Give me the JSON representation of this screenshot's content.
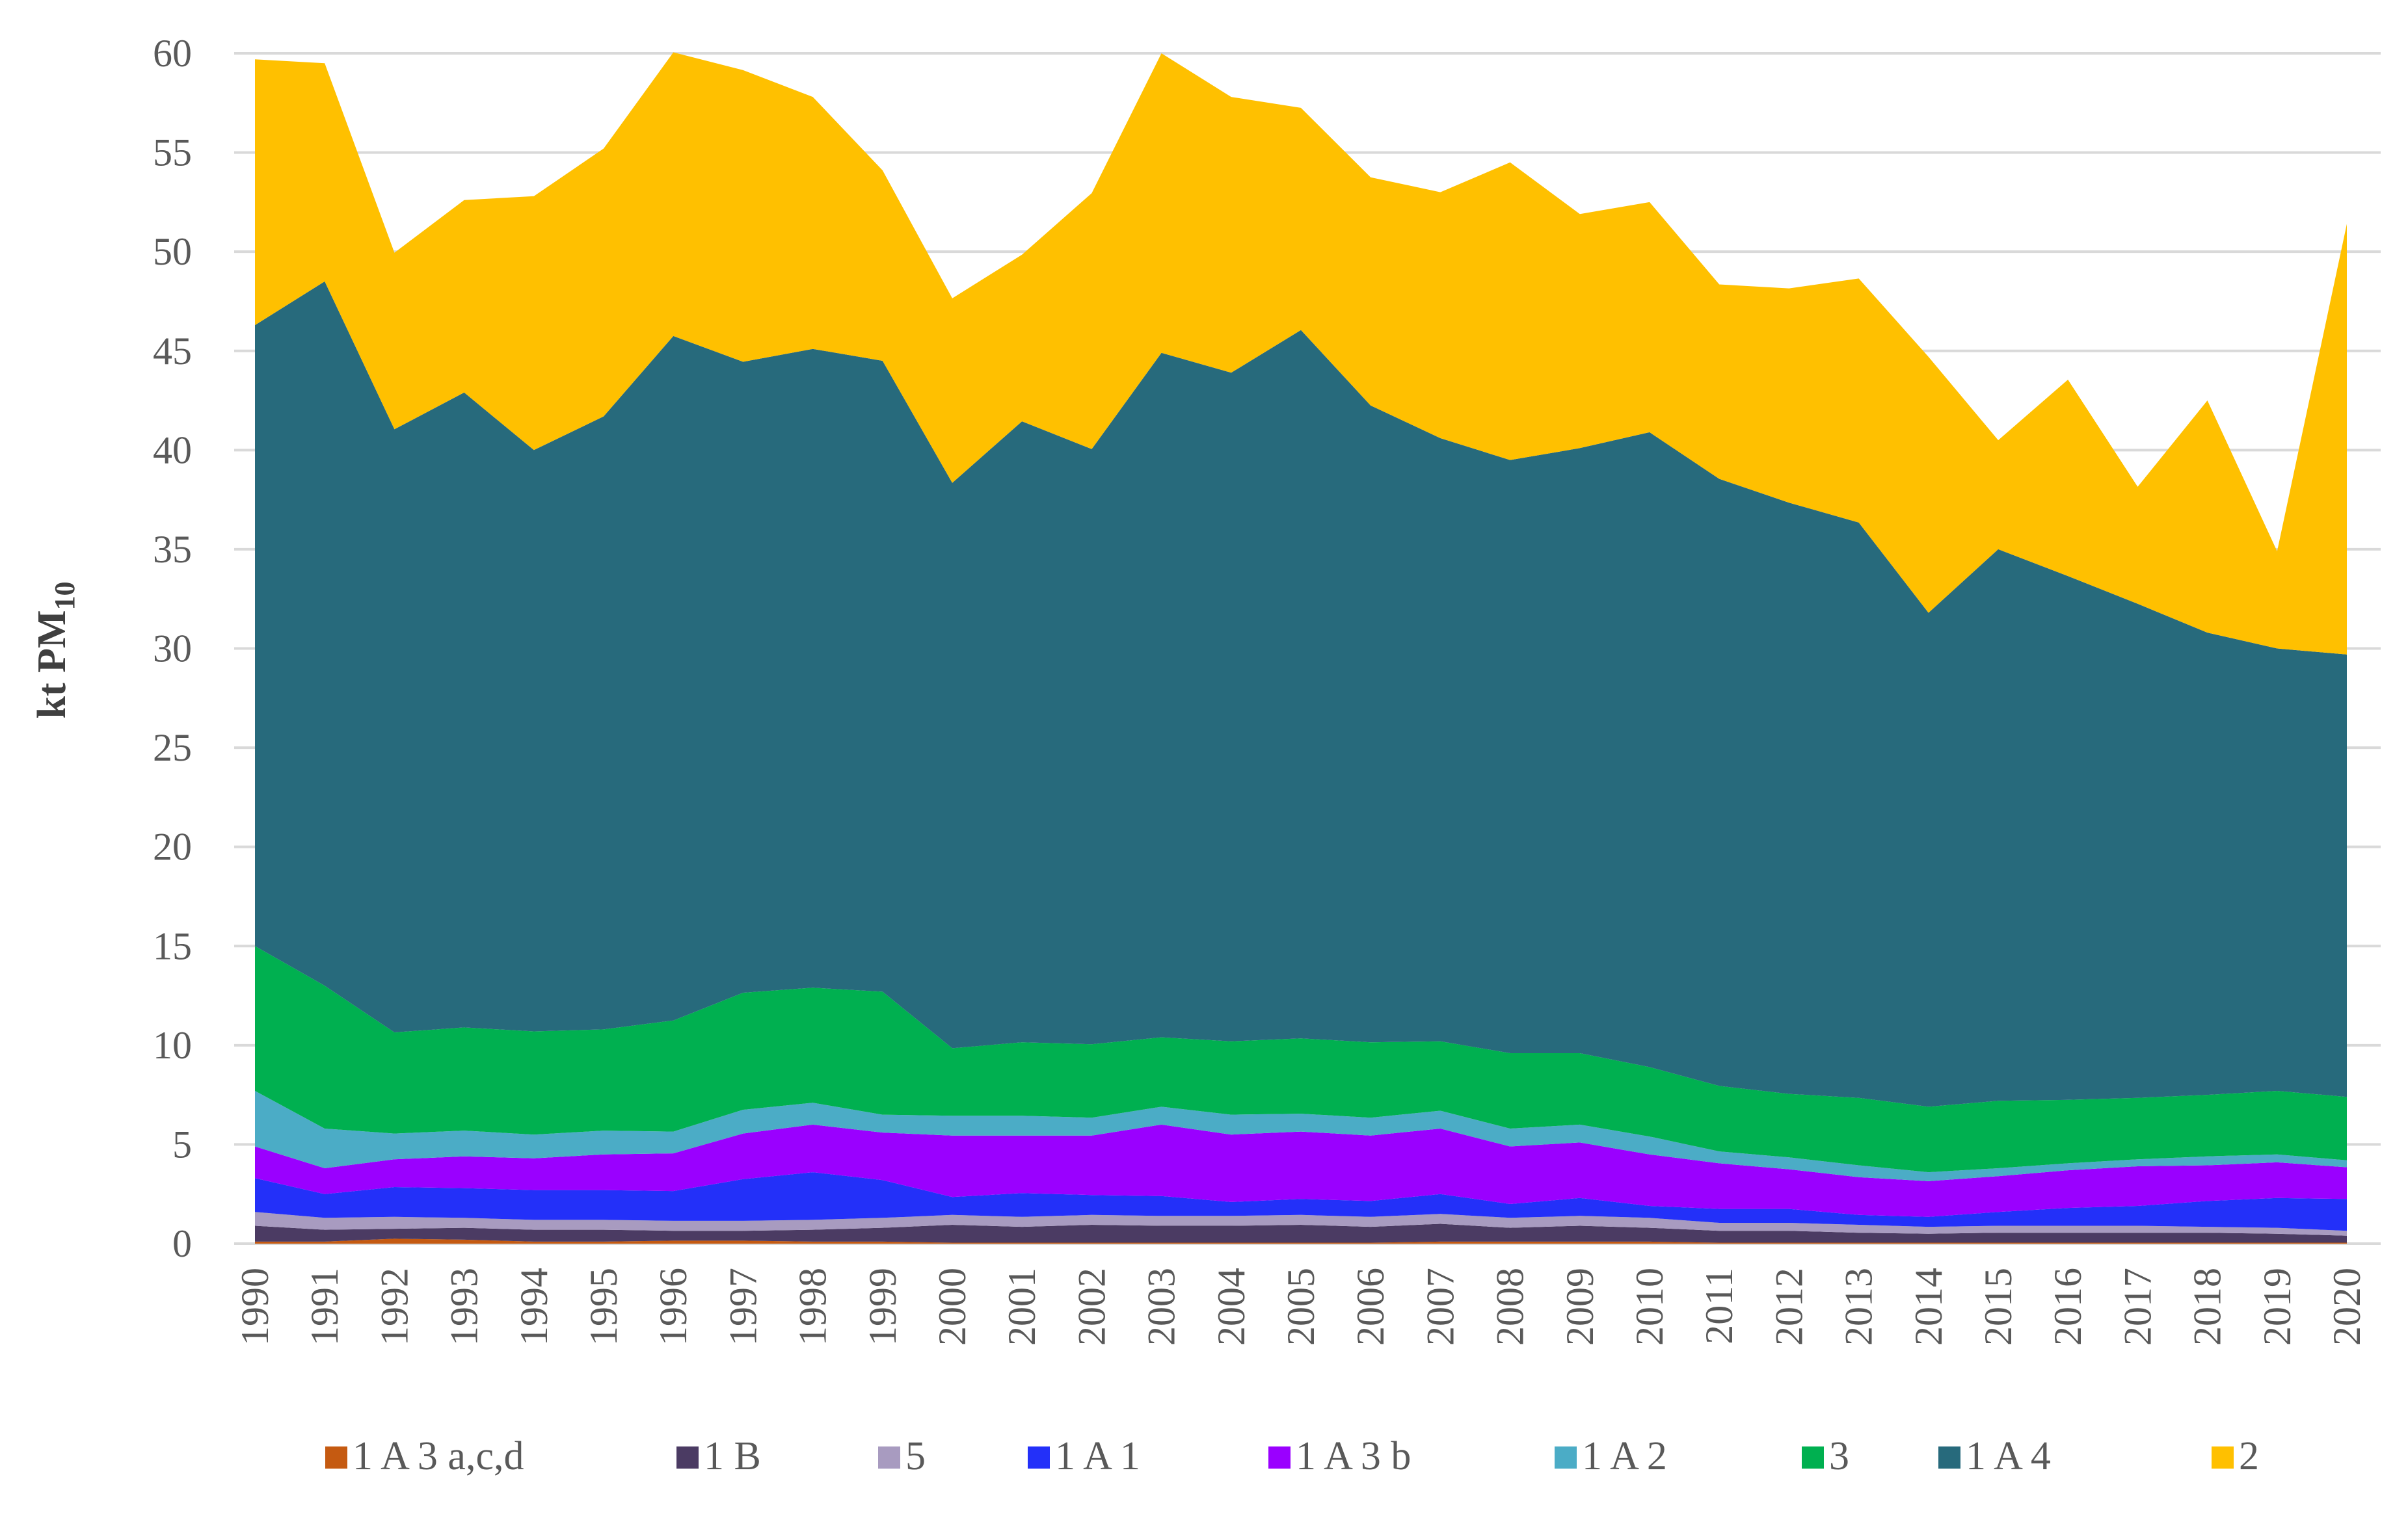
{
  "chart_data": {
    "type": "area",
    "stacked": true,
    "title": "",
    "xlabel": "",
    "ylabel": "kt PM",
    "ylabel_subscript": "10",
    "ylim": [
      0,
      60
    ],
    "yticks": [
      0,
      5,
      10,
      15,
      20,
      25,
      30,
      35,
      40,
      45,
      50,
      55,
      60
    ],
    "grid": true,
    "legend_position": "bottom",
    "x": [
      "1990",
      "1991",
      "1992",
      "1993",
      "1994",
      "1995",
      "1996",
      "1997",
      "1998",
      "1999",
      "2000",
      "2001",
      "2002",
      "2003",
      "2004",
      "2005",
      "2006",
      "2007",
      "2008",
      "2009",
      "2010",
      "2011",
      "2012",
      "2013",
      "2014",
      "2015",
      "2016",
      "2017",
      "2018",
      "2019",
      "2020"
    ],
    "series": [
      {
        "name": "1 A 3 a,c,d",
        "color": "#C55A11",
        "values": [
          0.1,
          0.1,
          0.25,
          0.2,
          0.1,
          0.1,
          0.15,
          0.15,
          0.1,
          0.1,
          0.05,
          0.05,
          0.05,
          0.05,
          0.05,
          0.05,
          0.05,
          0.1,
          0.1,
          0.1,
          0.1,
          0.05,
          0.05,
          0.05,
          0.05,
          0.05,
          0.05,
          0.05,
          0.05,
          0.05,
          0.05
        ]
      },
      {
        "name": "1 B",
        "color": "#4B3B63",
        "values": [
          0.8,
          0.6,
          0.5,
          0.6,
          0.6,
          0.6,
          0.5,
          0.5,
          0.6,
          0.7,
          0.9,
          0.8,
          0.9,
          0.85,
          0.85,
          0.9,
          0.8,
          0.9,
          0.7,
          0.8,
          0.7,
          0.6,
          0.6,
          0.5,
          0.45,
          0.5,
          0.5,
          0.5,
          0.5,
          0.45,
          0.35
        ]
      },
      {
        "name": "5",
        "color": "#A89BC0",
        "values": [
          0.7,
          0.6,
          0.6,
          0.5,
          0.5,
          0.5,
          0.5,
          0.5,
          0.5,
          0.5,
          0.5,
          0.5,
          0.5,
          0.5,
          0.5,
          0.5,
          0.5,
          0.5,
          0.5,
          0.5,
          0.5,
          0.4,
          0.4,
          0.4,
          0.35,
          0.35,
          0.35,
          0.35,
          0.3,
          0.3,
          0.25
        ]
      },
      {
        "name": "1 A 1",
        "color": "#2330F9",
        "values": [
          1.7,
          1.2,
          1.5,
          1.5,
          1.5,
          1.5,
          1.5,
          2.1,
          2.4,
          1.9,
          0.9,
          1.2,
          1.0,
          1.0,
          0.7,
          0.8,
          0.8,
          1.0,
          0.7,
          0.9,
          0.6,
          0.7,
          0.7,
          0.5,
          0.5,
          0.7,
          0.9,
          1.0,
          1.3,
          1.5,
          1.6
        ]
      },
      {
        "name": "1 A 3 b",
        "color": "#9A00FF",
        "values": [
          1.6,
          1.3,
          1.4,
          1.6,
          1.6,
          1.8,
          1.9,
          2.3,
          2.4,
          2.4,
          3.1,
          2.9,
          3.0,
          3.6,
          3.4,
          3.4,
          3.3,
          3.3,
          2.9,
          2.8,
          2.6,
          2.3,
          2.0,
          1.9,
          1.8,
          1.8,
          1.9,
          2.0,
          1.8,
          1.8,
          1.6
        ]
      },
      {
        "name": "1 A 2",
        "color": "#4BACC6",
        "values": [
          2.8,
          2.0,
          1.3,
          1.3,
          1.2,
          1.2,
          1.1,
          1.2,
          1.1,
          0.9,
          1.0,
          1.0,
          0.9,
          0.9,
          1.0,
          0.9,
          0.9,
          0.9,
          0.9,
          0.9,
          0.9,
          0.6,
          0.6,
          0.6,
          0.45,
          0.4,
          0.35,
          0.35,
          0.45,
          0.4,
          0.35
        ]
      },
      {
        "name": "3",
        "color": "#00B050",
        "values": [
          7.3,
          7.2,
          5.1,
          5.2,
          5.2,
          5.1,
          5.6,
          5.9,
          5.8,
          6.2,
          3.4,
          3.7,
          3.7,
          3.5,
          3.7,
          3.8,
          3.8,
          3.5,
          3.8,
          3.6,
          3.5,
          3.3,
          3.2,
          3.4,
          3.3,
          3.4,
          3.2,
          3.1,
          3.1,
          3.2,
          3.2
        ]
      },
      {
        "name": "1 A 4",
        "color": "#276A7C",
        "values": [
          31.3,
          35.5,
          30.4,
          32.0,
          29.3,
          30.9,
          34.5,
          31.8,
          32.2,
          31.8,
          28.5,
          31.3,
          30.0,
          34.5,
          33.7,
          35.7,
          32.1,
          30.4,
          29.9,
          30.5,
          32.0,
          30.6,
          29.8,
          29.0,
          24.9,
          27.8,
          26.4,
          24.9,
          23.3,
          22.3,
          22.3
        ]
      },
      {
        "name": "2",
        "color": "#FFC000",
        "values": [
          13.4,
          11.0,
          8.9,
          9.7,
          12.8,
          13.5,
          14.3,
          14.7,
          12.7,
          9.6,
          9.3,
          8.4,
          12.9,
          15.1,
          13.9,
          11.2,
          11.5,
          12.4,
          15.0,
          11.8,
          11.6,
          9.8,
          10.8,
          12.3,
          12.9,
          5.5,
          9.9,
          5.9,
          11.7,
          4.9,
          21.7
        ]
      }
    ]
  }
}
